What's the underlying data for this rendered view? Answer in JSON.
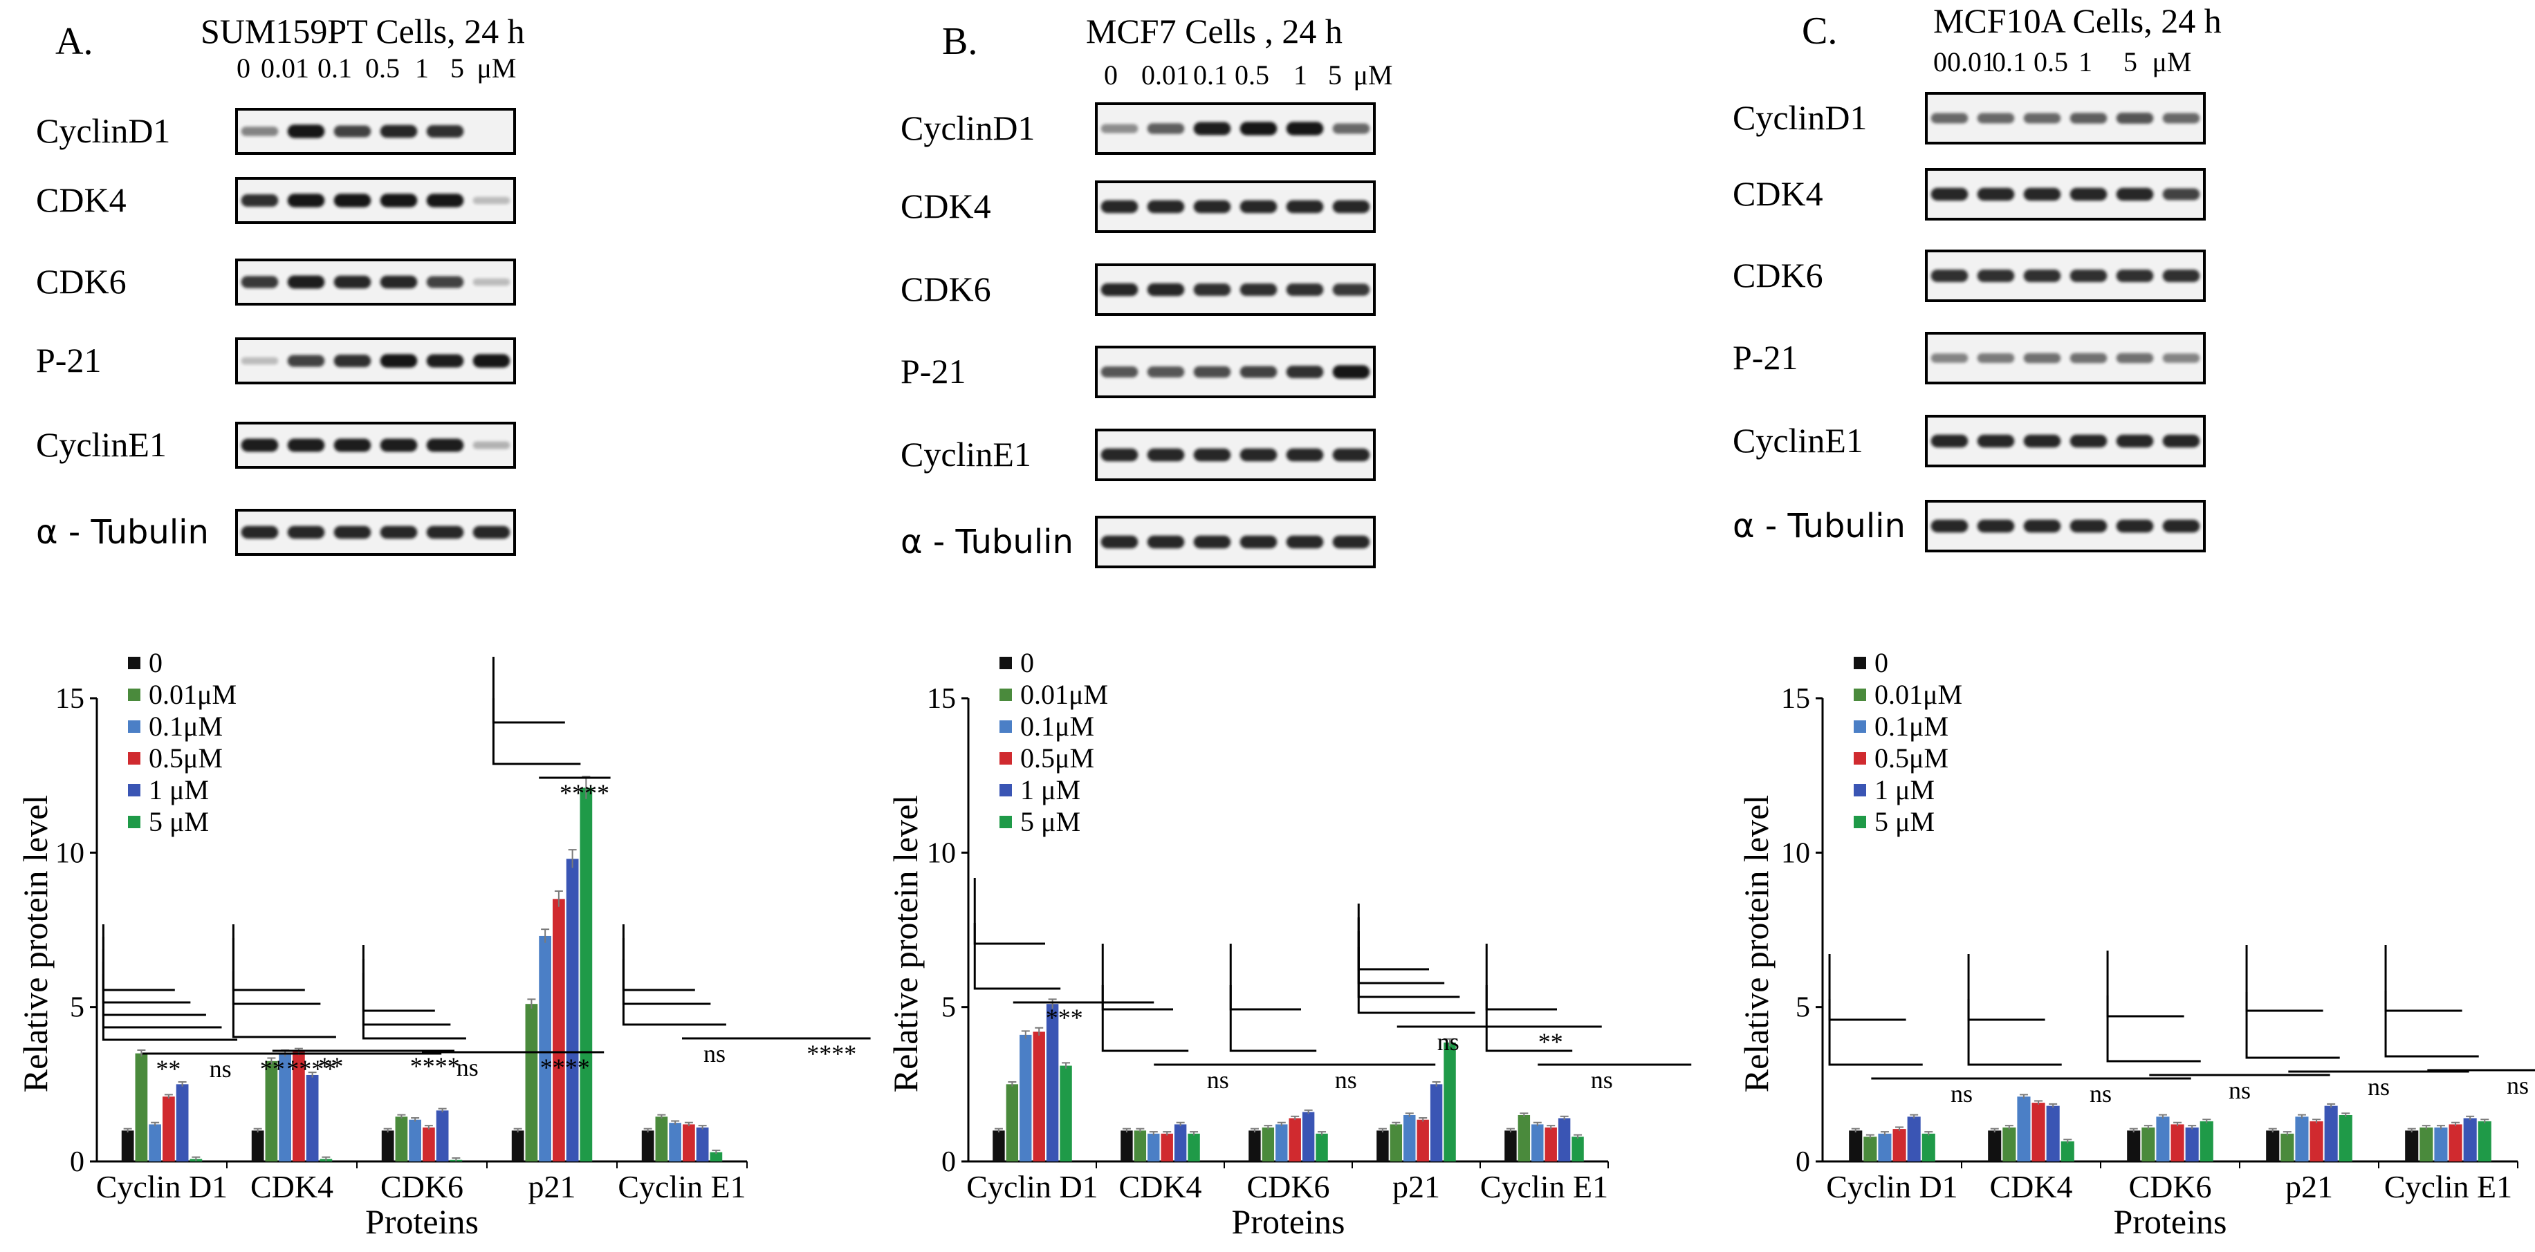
{
  "figure": {
    "colors": {
      "0": "#111111",
      "0.01": "#4a8a3c",
      "0.1": "#4b7fc6",
      "0.5": "#d02a2f",
      "1": "#3a55b4",
      "5": "#1f9a48",
      "blot_bg": "#f2f2f2",
      "band": "#141414"
    },
    "panels": [
      {
        "letter": "A.",
        "title": "SUM159PT Cells, 24 h",
        "doses": [
          "0",
          "0.01",
          "0.1",
          "0.5",
          "1",
          "5",
          "μM"
        ],
        "blots": [
          {
            "label": "CyclinD1",
            "intensities": [
              0.35,
              0.95,
              0.7,
              0.85,
              0.8,
              0.0
            ]
          },
          {
            "label": "CDK4",
            "intensities": [
              0.8,
              0.95,
              0.95,
              0.95,
              0.95,
              0.05
            ]
          },
          {
            "label": "CDK6",
            "intensities": [
              0.75,
              0.9,
              0.85,
              0.85,
              0.7,
              0.05
            ]
          },
          {
            "label": "P-21",
            "intensities": [
              0.05,
              0.7,
              0.8,
              0.95,
              0.9,
              0.95
            ]
          },
          {
            "label": "CyclinE1",
            "intensities": [
              0.9,
              0.9,
              0.9,
              0.9,
              0.9,
              0.1
            ]
          },
          {
            "label": "α - Tubulin",
            "intensities": [
              0.85,
              0.85,
              0.85,
              0.85,
              0.85,
              0.85
            ]
          }
        ],
        "sig_labels": [
          "**",
          "ns",
          "**",
          "****",
          "**",
          "****",
          "ns",
          "****",
          "****",
          "ns",
          "****"
        ]
      },
      {
        "letter": "B.",
        "title": "MCF7 Cells , 24 h",
        "doses": [
          "0",
          "0.01",
          "0.1",
          "0.5",
          "1",
          "5",
          "μM"
        ],
        "blots": [
          {
            "label": "CyclinD1",
            "intensities": [
              0.3,
              0.55,
              0.9,
              0.95,
              0.95,
              0.5
            ]
          },
          {
            "label": "CDK4",
            "intensities": [
              0.85,
              0.85,
              0.85,
              0.85,
              0.85,
              0.85
            ]
          },
          {
            "label": "CDK6",
            "intensities": [
              0.85,
              0.85,
              0.8,
              0.8,
              0.8,
              0.75
            ]
          },
          {
            "label": "P-21",
            "intensities": [
              0.6,
              0.6,
              0.65,
              0.7,
              0.8,
              0.95
            ]
          },
          {
            "label": "CyclinE1",
            "intensities": [
              0.85,
              0.85,
              0.85,
              0.85,
              0.85,
              0.85
            ]
          },
          {
            "label": "α - Tubulin",
            "intensities": [
              0.85,
              0.85,
              0.85,
              0.85,
              0.85,
              0.85
            ]
          }
        ],
        "sig_labels": [
          "***",
          "ns",
          "ns",
          "ns",
          "**",
          "ns"
        ]
      },
      {
        "letter": "C.",
        "title": "MCF10A Cells, 24 h",
        "doses": [
          "0",
          "0.01",
          "0.1",
          "0.5",
          "1",
          "5",
          "μM"
        ],
        "blots": [
          {
            "label": "CyclinD1",
            "intensities": [
              0.5,
              0.5,
              0.5,
              0.55,
              0.6,
              0.5
            ]
          },
          {
            "label": "CDK4",
            "intensities": [
              0.85,
              0.85,
              0.85,
              0.85,
              0.85,
              0.7
            ]
          },
          {
            "label": "CDK6",
            "intensities": [
              0.8,
              0.8,
              0.8,
              0.8,
              0.8,
              0.8
            ]
          },
          {
            "label": "P-21",
            "intensities": [
              0.35,
              0.4,
              0.45,
              0.45,
              0.45,
              0.35
            ]
          },
          {
            "label": "CyclinE1",
            "intensities": [
              0.85,
              0.85,
              0.85,
              0.85,
              0.85,
              0.85
            ]
          },
          {
            "label": "α - Tubulin",
            "intensities": [
              0.85,
              0.85,
              0.85,
              0.85,
              0.85,
              0.85
            ]
          }
        ],
        "sig_labels": [
          "ns",
          "ns",
          "ns",
          "ns",
          "ns"
        ]
      }
    ]
  },
  "chart_data": [
    {
      "type": "bar",
      "title": "",
      "xlabel": "Proteins",
      "ylabel": "Relative protein level",
      "ylim": [
        0,
        15
      ],
      "yticks": [
        0,
        5,
        10,
        15
      ],
      "categories": [
        "Cyclin D1",
        "CDK4",
        "CDK6",
        "p21",
        "Cyclin E1"
      ],
      "legend": [
        "0",
        "0.01μM",
        "0.1μM",
        "0.5μM",
        "1 μM",
        "5 μM"
      ],
      "series": [
        {
          "name": "0",
          "values": [
            1.0,
            1.0,
            1.0,
            1.0,
            1.0
          ]
        },
        {
          "name": "0.01μM",
          "values": [
            3.5,
            3.25,
            1.45,
            5.1,
            1.45
          ]
        },
        {
          "name": "0.1μM",
          "values": [
            1.2,
            3.5,
            1.35,
            7.3,
            1.25
          ]
        },
        {
          "name": "0.5μM",
          "values": [
            2.1,
            3.55,
            1.1,
            8.5,
            1.2
          ]
        },
        {
          "name": "1 μM",
          "values": [
            2.5,
            2.8,
            1.65,
            9.8,
            1.1
          ]
        },
        {
          "name": "5 μM",
          "values": [
            0.08,
            0.08,
            0.05,
            12.1,
            0.3
          ]
        }
      ]
    },
    {
      "type": "bar",
      "title": "",
      "xlabel": "Proteins",
      "ylabel": "Relative protein level",
      "ylim": [
        0,
        15
      ],
      "yticks": [
        0,
        5,
        10,
        15
      ],
      "categories": [
        "Cyclin D1",
        "CDK4",
        "CDK6",
        "p21",
        "Cyclin E1"
      ],
      "legend": [
        "0",
        "0.01μM",
        "0.1μM",
        "0.5μM",
        "1 μM",
        "5 μM"
      ],
      "series": [
        {
          "name": "0",
          "values": [
            1.0,
            1.0,
            1.0,
            1.0,
            1.0
          ]
        },
        {
          "name": "0.01μM",
          "values": [
            2.5,
            1.0,
            1.1,
            1.2,
            1.5
          ]
        },
        {
          "name": "0.1μM",
          "values": [
            4.1,
            0.9,
            1.2,
            1.5,
            1.2
          ]
        },
        {
          "name": "0.5μM",
          "values": [
            4.2,
            0.9,
            1.4,
            1.35,
            1.1
          ]
        },
        {
          "name": "1 μM",
          "values": [
            5.1,
            1.2,
            1.6,
            2.5,
            1.4
          ]
        },
        {
          "name": "5 μM",
          "values": [
            3.1,
            0.9,
            0.9,
            3.85,
            0.8
          ]
        }
      ]
    },
    {
      "type": "bar",
      "title": "",
      "xlabel": "Proteins",
      "ylabel": "Relative protein level",
      "ylim": [
        0,
        15
      ],
      "yticks": [
        0,
        5,
        10,
        15
      ],
      "categories": [
        "Cyclin D1",
        "CDK4",
        "CDK6",
        "p21",
        "Cyclin E1"
      ],
      "legend": [
        "0",
        "0.01μM",
        "0.1μM",
        "0.5μM",
        "1 μM",
        "5 μM"
      ],
      "series": [
        {
          "name": "0",
          "values": [
            1.0,
            1.0,
            1.0,
            1.0,
            1.0
          ]
        },
        {
          "name": "0.01μM",
          "values": [
            0.8,
            1.1,
            1.1,
            0.9,
            1.1
          ]
        },
        {
          "name": "0.1μM",
          "values": [
            0.9,
            2.1,
            1.45,
            1.45,
            1.1
          ]
        },
        {
          "name": "0.5μM",
          "values": [
            1.05,
            1.9,
            1.2,
            1.3,
            1.2
          ]
        },
        {
          "name": "1 μM",
          "values": [
            1.45,
            1.8,
            1.1,
            1.8,
            1.4
          ]
        },
        {
          "name": "5 μM",
          "values": [
            0.9,
            0.65,
            1.3,
            1.5,
            1.3
          ]
        }
      ]
    }
  ]
}
